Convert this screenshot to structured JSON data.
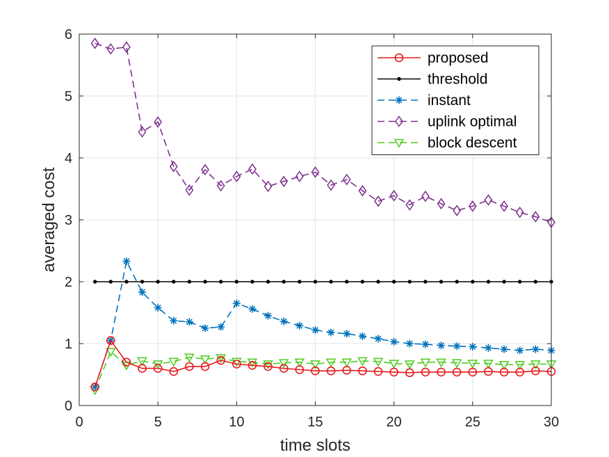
{
  "chart_data": {
    "type": "line",
    "title": "",
    "xlabel": "time slots",
    "ylabel": "averaged cost",
    "xlim": [
      0,
      30
    ],
    "ylim": [
      0,
      6
    ],
    "xticks": [
      0,
      5,
      10,
      15,
      20,
      25,
      30
    ],
    "yticks": [
      0,
      1,
      2,
      3,
      4,
      5,
      6
    ],
    "grid": true,
    "legend_position": "top-right",
    "x": [
      1,
      2,
      3,
      4,
      5,
      6,
      7,
      8,
      9,
      10,
      11,
      12,
      13,
      14,
      15,
      16,
      17,
      18,
      19,
      20,
      21,
      22,
      23,
      24,
      25,
      26,
      27,
      28,
      29,
      30
    ],
    "series": [
      {
        "name": "proposed",
        "color": "#e41a1c",
        "marker": "circle",
        "line": "solid",
        "values": [
          0.3,
          1.05,
          0.7,
          0.6,
          0.6,
          0.55,
          0.63,
          0.63,
          0.73,
          0.67,
          0.65,
          0.63,
          0.6,
          0.58,
          0.56,
          0.56,
          0.57,
          0.56,
          0.55,
          0.54,
          0.53,
          0.54,
          0.54,
          0.54,
          0.54,
          0.55,
          0.54,
          0.54,
          0.56,
          0.55
        ]
      },
      {
        "name": "threshold",
        "color": "#000000",
        "marker": "dot",
        "line": "solid",
        "values": [
          2,
          2,
          2,
          2,
          2,
          2,
          2,
          2,
          2,
          2,
          2,
          2,
          2,
          2,
          2,
          2,
          2,
          2,
          2,
          2,
          2,
          2,
          2,
          2,
          2,
          2,
          2,
          2,
          2,
          2
        ]
      },
      {
        "name": "instant",
        "color": "#0072bd",
        "marker": "asterisk",
        "line": "dashed",
        "values": [
          0.3,
          1.05,
          2.33,
          1.83,
          1.58,
          1.37,
          1.35,
          1.25,
          1.27,
          1.65,
          1.56,
          1.45,
          1.36,
          1.29,
          1.22,
          1.18,
          1.16,
          1.12,
          1.08,
          1.03,
          1.0,
          0.99,
          0.97,
          0.96,
          0.95,
          0.93,
          0.91,
          0.89,
          0.91,
          0.89
        ]
      },
      {
        "name": "uplink optimal",
        "color": "#7e2f8e",
        "marker": "diamond",
        "line": "dashed",
        "values": [
          5.85,
          5.76,
          5.79,
          4.42,
          4.58,
          3.86,
          3.48,
          3.81,
          3.55,
          3.7,
          3.82,
          3.54,
          3.62,
          3.7,
          3.77,
          3.56,
          3.65,
          3.47,
          3.3,
          3.39,
          3.24,
          3.38,
          3.26,
          3.15,
          3.22,
          3.32,
          3.22,
          3.12,
          3.05,
          2.96
        ]
      },
      {
        "name": "block descent",
        "color": "#4dcc1f",
        "marker": "triangle-down",
        "line": "dashed",
        "values": [
          0.25,
          0.87,
          0.65,
          0.72,
          0.67,
          0.71,
          0.78,
          0.75,
          0.77,
          0.71,
          0.7,
          0.67,
          0.69,
          0.7,
          0.67,
          0.7,
          0.7,
          0.72,
          0.71,
          0.68,
          0.67,
          0.7,
          0.7,
          0.69,
          0.68,
          0.68,
          0.66,
          0.66,
          0.67,
          0.67
        ]
      }
    ]
  }
}
